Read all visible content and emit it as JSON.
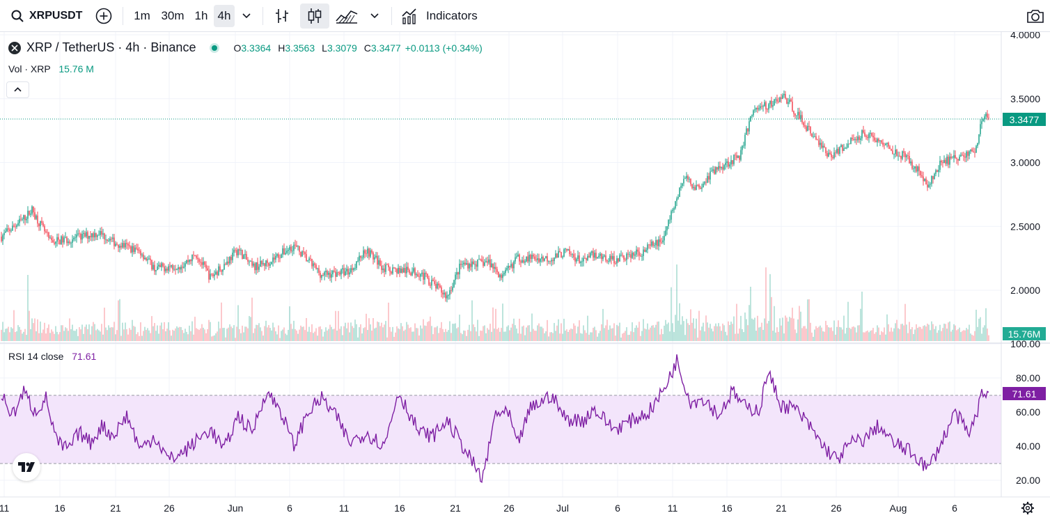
{
  "toolbar": {
    "symbol": "XRPUSDT",
    "intervals": [
      "1m",
      "30m",
      "1h",
      "4h"
    ],
    "active_interval": "4h",
    "indicators_label": "Indicators"
  },
  "legend": {
    "title": "XRP / TetherUS · 4h · Binance",
    "open_label": "O",
    "open": "3.3364",
    "high_label": "H",
    "high": "3.3563",
    "low_label": "L",
    "low": "3.3079",
    "close_label": "C",
    "close": "3.3477",
    "change": "+0.0113 (+0.34%)",
    "vol_label": "Vol · XRP",
    "vol_value": "15.76 M"
  },
  "rsi": {
    "label": "RSI 14 close",
    "value": "71.61"
  },
  "price_axis": {
    "ticks": [
      "4.0000",
      "3.5000",
      "3.0000",
      "2.5000",
      "2.0000"
    ],
    "last_price": "3.3477",
    "last_volume": "15.76M"
  },
  "rsi_axis": {
    "ticks": [
      "100.00",
      "80.00",
      "60.00",
      "40.00",
      "20.00"
    ],
    "last_value": "71.61"
  },
  "time_axis": {
    "ticks": [
      "11",
      "16",
      "21",
      "26",
      "Jun",
      "6",
      "11",
      "16",
      "21",
      "26",
      "Jul",
      "6",
      "11",
      "16",
      "21",
      "26",
      "Aug",
      "6"
    ]
  },
  "colors": {
    "up": "#089981",
    "down": "#f23645",
    "rsi_line": "#7e1fa3",
    "rsi_band": "#f3e5fb"
  },
  "chart_data": {
    "type": "candlestick",
    "price_keypoints": [
      [
        0,
        2.42
      ],
      [
        15,
        2.55
      ],
      [
        22,
        2.63
      ],
      [
        35,
        2.38
      ],
      [
        50,
        2.4
      ],
      [
        70,
        2.45
      ],
      [
        80,
        2.38
      ],
      [
        100,
        2.3
      ],
      [
        110,
        2.17
      ],
      [
        130,
        2.2
      ],
      [
        140,
        2.28
      ],
      [
        150,
        2.1
      ],
      [
        160,
        2.2
      ],
      [
        170,
        2.32
      ],
      [
        180,
        2.18
      ],
      [
        190,
        2.21
      ],
      [
        210,
        2.35
      ],
      [
        230,
        2.12
      ],
      [
        250,
        2.15
      ],
      [
        262,
        2.32
      ],
      [
        275,
        2.17
      ],
      [
        300,
        2.14
      ],
      [
        310,
        2.05
      ],
      [
        320,
        1.95
      ],
      [
        330,
        2.2
      ],
      [
        350,
        2.22
      ],
      [
        360,
        2.1
      ],
      [
        370,
        2.25
      ],
      [
        395,
        2.25
      ],
      [
        405,
        2.3
      ],
      [
        418,
        2.22
      ],
      [
        425,
        2.28
      ],
      [
        440,
        2.24
      ],
      [
        460,
        2.3
      ],
      [
        475,
        2.4
      ],
      [
        490,
        2.88
      ],
      [
        500,
        2.8
      ],
      [
        510,
        2.92
      ],
      [
        518,
        2.98
      ],
      [
        530,
        3.05
      ],
      [
        540,
        3.42
      ],
      [
        552,
        3.45
      ],
      [
        562,
        3.52
      ],
      [
        570,
        3.4
      ],
      [
        580,
        3.25
      ],
      [
        595,
        3.05
      ],
      [
        612,
        3.18
      ],
      [
        620,
        3.24
      ],
      [
        632,
        3.15
      ],
      [
        648,
        3.05
      ],
      [
        660,
        2.92
      ],
      [
        665,
        2.8
      ],
      [
        675,
        3.0
      ],
      [
        690,
        3.05
      ],
      [
        700,
        3.1
      ],
      [
        704,
        3.35
      ],
      [
        709,
        3.35
      ]
    ],
    "volume_range": [
      0,
      220
    ],
    "rsi_keypoints": [
      [
        0,
        70
      ],
      [
        8,
        58
      ],
      [
        16,
        72
      ],
      [
        24,
        60
      ],
      [
        32,
        68
      ],
      [
        40,
        42
      ],
      [
        48,
        38
      ],
      [
        56,
        48
      ],
      [
        64,
        42
      ],
      [
        72,
        52
      ],
      [
        80,
        46
      ],
      [
        90,
        58
      ],
      [
        100,
        38
      ],
      [
        110,
        46
      ],
      [
        120,
        32
      ],
      [
        130,
        36
      ],
      [
        150,
        50
      ],
      [
        160,
        38
      ],
      [
        170,
        58
      ],
      [
        180,
        48
      ],
      [
        190,
        72
      ],
      [
        200,
        62
      ],
      [
        210,
        40
      ],
      [
        220,
        60
      ],
      [
        230,
        68
      ],
      [
        240,
        58
      ],
      [
        250,
        42
      ],
      [
        262,
        48
      ],
      [
        275,
        40
      ],
      [
        285,
        72
      ],
      [
        300,
        48
      ],
      [
        310,
        46
      ],
      [
        320,
        55
      ],
      [
        330,
        42
      ],
      [
        340,
        28
      ],
      [
        345,
        20
      ],
      [
        350,
        38
      ],
      [
        355,
        60
      ],
      [
        365,
        58
      ],
      [
        370,
        40
      ],
      [
        380,
        62
      ],
      [
        395,
        70
      ],
      [
        405,
        56
      ],
      [
        418,
        55
      ],
      [
        425,
        62
      ],
      [
        440,
        50
      ],
      [
        455,
        56
      ],
      [
        465,
        60
      ],
      [
        475,
        72
      ],
      [
        485,
        90
      ],
      [
        495,
        66
      ],
      [
        505,
        68
      ],
      [
        515,
        58
      ],
      [
        525,
        72
      ],
      [
        535,
        62
      ],
      [
        545,
        62
      ],
      [
        550,
        84
      ],
      [
        560,
        64
      ],
      [
        570,
        62
      ],
      [
        580,
        52
      ],
      [
        590,
        40
      ],
      [
        600,
        32
      ],
      [
        610,
        42
      ],
      [
        620,
        44
      ],
      [
        630,
        52
      ],
      [
        640,
        42
      ],
      [
        650,
        38
      ],
      [
        660,
        32
      ],
      [
        665,
        26
      ],
      [
        675,
        42
      ],
      [
        685,
        60
      ],
      [
        695,
        46
      ],
      [
        705,
        72
      ],
      [
        709,
        71.61
      ]
    ],
    "price_ylim": [
      1.7,
      4.05
    ],
    "rsi_ylim": [
      15,
      100
    ],
    "rsi_bands": [
      30,
      70
    ]
  }
}
